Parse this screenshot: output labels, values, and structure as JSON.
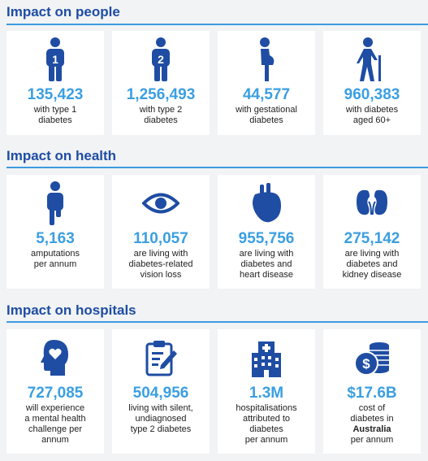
{
  "sections": [
    {
      "title": "Impact on people",
      "cards": [
        {
          "icon": "person-type1-icon",
          "value": "135,423",
          "text": [
            "with type 1",
            "diabetes"
          ]
        },
        {
          "icon": "person-type2-icon",
          "value": "1,256,493",
          "text": [
            "with type 2",
            "diabetes"
          ]
        },
        {
          "icon": "pregnant-woman-icon",
          "value": "44,577",
          "text": [
            "with gestational",
            "diabetes"
          ]
        },
        {
          "icon": "elderly-person-icon",
          "value": "960,383",
          "text": [
            "with diabetes",
            "aged 60+"
          ]
        }
      ]
    },
    {
      "title": "Impact on health",
      "cards": [
        {
          "icon": "amputation-icon",
          "value": "5,163",
          "text": [
            "amputations",
            "per annum"
          ]
        },
        {
          "icon": "eye-icon",
          "value": "110,057",
          "text": [
            "are living with",
            "diabetes-related",
            "vision loss"
          ]
        },
        {
          "icon": "heart-icon",
          "value": "955,756",
          "text": [
            "are living with",
            "diabetes and",
            "heart disease"
          ]
        },
        {
          "icon": "kidney-icon",
          "value": "275,142",
          "text": [
            "are living with",
            "diabetes and",
            "kidney disease"
          ]
        }
      ]
    },
    {
      "title": "Impact on hospitals",
      "cards": [
        {
          "icon": "mental-health-head-icon",
          "value": "727,085",
          "text": [
            "will experience",
            "a mental health",
            "challenge per",
            "annum"
          ]
        },
        {
          "icon": "clipboard-icon",
          "value": "504,956",
          "text": [
            "living with silent,",
            "undiagnosed",
            "type 2 diabetes"
          ]
        },
        {
          "icon": "hospital-building-icon",
          "value": "1.3M",
          "text": [
            "hospitalisations",
            "attributed to",
            "diabetes",
            "per annum"
          ]
        },
        {
          "icon": "coins-icon",
          "value": "$17.6B",
          "text": [
            "cost of",
            "diabetes in",
            "Australia",
            "per annum"
          ]
        }
      ]
    }
  ],
  "colors": {
    "title": "#1f4da3",
    "accent": "#3b9fe1",
    "icon": "#1f4da3"
  }
}
